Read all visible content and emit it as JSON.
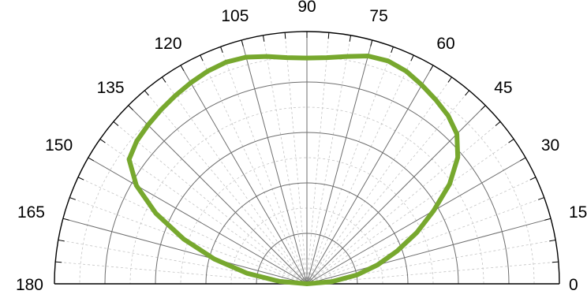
{
  "chart_data": {
    "type": "polar",
    "title": "",
    "angle_range_deg": [
      0,
      180
    ],
    "angle_ticks": [
      "0",
      "15",
      "30",
      "45",
      "60",
      "75",
      "90",
      "105",
      "120",
      "135",
      "150",
      "165",
      "180"
    ],
    "angle_tick_values": [
      0,
      15,
      30,
      45,
      60,
      75,
      90,
      105,
      120,
      135,
      150,
      165,
      180
    ],
    "radius_range": [
      0,
      1
    ],
    "radial_major_rings": [
      0.2,
      0.4,
      0.6,
      0.8,
      1.0
    ],
    "radial_minor_rings": [
      0.1,
      0.3,
      0.5,
      0.7,
      0.9
    ],
    "major_spoke_step_deg": 15,
    "minor_spoke_step_deg": 5,
    "grid": true,
    "series": [
      {
        "color": "#77a82e",
        "points": [
          {
            "theta": 0,
            "r": 0.0
          },
          {
            "theta": 5,
            "r": 0.1
          },
          {
            "theta": 10,
            "r": 0.2
          },
          {
            "theta": 15,
            "r": 0.29
          },
          {
            "theta": 20,
            "r": 0.38
          },
          {
            "theta": 25,
            "r": 0.48
          },
          {
            "theta": 30,
            "r": 0.58
          },
          {
            "theta": 35,
            "r": 0.69
          },
          {
            "theta": 40,
            "r": 0.78
          },
          {
            "theta": 45,
            "r": 0.84
          },
          {
            "theta": 50,
            "r": 0.87
          },
          {
            "theta": 55,
            "r": 0.89
          },
          {
            "theta": 60,
            "r": 0.91
          },
          {
            "theta": 65,
            "r": 0.93
          },
          {
            "theta": 70,
            "r": 0.94
          },
          {
            "theta": 75,
            "r": 0.935
          },
          {
            "theta": 80,
            "r": 0.915
          },
          {
            "theta": 85,
            "r": 0.9
          },
          {
            "theta": 90,
            "r": 0.895
          },
          {
            "theta": 95,
            "r": 0.9
          },
          {
            "theta": 100,
            "r": 0.915
          },
          {
            "theta": 105,
            "r": 0.93
          },
          {
            "theta": 110,
            "r": 0.935
          },
          {
            "theta": 115,
            "r": 0.93
          },
          {
            "theta": 120,
            "r": 0.92
          },
          {
            "theta": 125,
            "r": 0.91
          },
          {
            "theta": 130,
            "r": 0.9
          },
          {
            "theta": 135,
            "r": 0.89
          },
          {
            "theta": 140,
            "r": 0.88
          },
          {
            "theta": 145,
            "r": 0.86
          },
          {
            "theta": 150,
            "r": 0.78
          },
          {
            "theta": 155,
            "r": 0.66
          },
          {
            "theta": 160,
            "r": 0.52
          },
          {
            "theta": 165,
            "r": 0.38
          },
          {
            "theta": 170,
            "r": 0.24
          },
          {
            "theta": 175,
            "r": 0.11
          },
          {
            "theta": 180,
            "r": 0.0
          }
        ]
      }
    ]
  }
}
